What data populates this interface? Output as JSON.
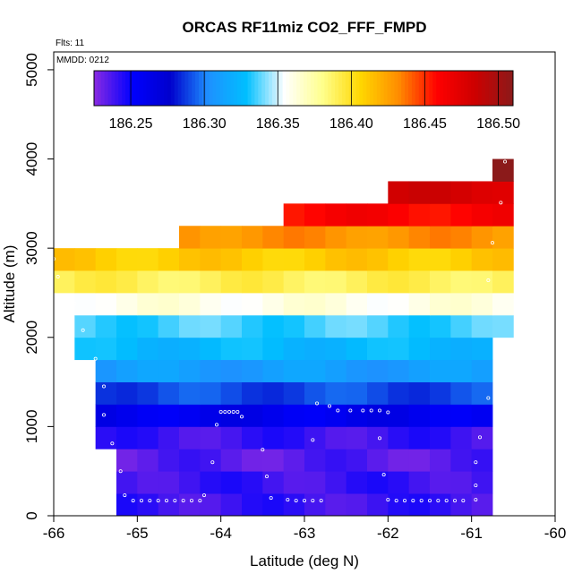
{
  "chart_data": {
    "type": "heatmap",
    "title": "ORCAS RF11miz CO2_FFF_FMPD",
    "xlabel": "Latitude (deg N)",
    "ylabel": "Altitude (m)",
    "xlim": [
      -66,
      -60
    ],
    "ylim": [
      0,
      5200
    ],
    "x_ticks": [
      -66,
      -65,
      -64,
      -63,
      -62,
      -61,
      -60
    ],
    "y_ticks": [
      0,
      1000,
      2000,
      3000,
      4000,
      5000
    ],
    "annotations": {
      "flights": "Flts: 11",
      "mmdd": "MMDD: 0212"
    },
    "colorbar": {
      "min": 186.225,
      "max": 186.51,
      "ticks": [
        186.25,
        186.3,
        186.35,
        186.4,
        186.45,
        186.5
      ],
      "tick_labels": [
        "186.25",
        "186.30",
        "186.35",
        "186.40",
        "186.45",
        "186.50"
      ],
      "colors": [
        "#8a2be2",
        "#0000ff",
        "#0000cd",
        "#1e90ff",
        "#00bfff",
        "#ffffff",
        "#ffff8c",
        "#ffd700",
        "#ff8c00",
        "#ff0000",
        "#cd0000",
        "#8b1a1a"
      ]
    },
    "altitude_bin_size_m": 250,
    "latitude_bin_size_deg": 0.25,
    "rows": [
      {
        "alt": 0,
        "lat_min": -65.25,
        "lat_max": -60.75,
        "value": 186.24
      },
      {
        "alt": 250,
        "lat_min": -65.25,
        "lat_max": -60.75,
        "value": 186.24
      },
      {
        "alt": 500,
        "lat_min": -65.25,
        "lat_max": -60.75,
        "value": 186.235
      },
      {
        "alt": 750,
        "lat_min": -65.5,
        "lat_max": -60.75,
        "value": 186.24
      },
      {
        "alt": 1000,
        "lat_min": -65.5,
        "lat_max": -60.75,
        "value": 186.26
      },
      {
        "alt": 1250,
        "lat_min": -65.5,
        "lat_max": -60.75,
        "value": 186.29
      },
      {
        "alt": 1500,
        "lat_min": -65.5,
        "lat_max": -60.75,
        "value": 186.31
      },
      {
        "alt": 1750,
        "lat_min": -65.75,
        "lat_max": -60.75,
        "value": 186.325
      },
      {
        "alt": 2000,
        "lat_min": -65.75,
        "lat_max": -60.5,
        "value": 186.335
      },
      {
        "alt": 2250,
        "lat_min": -65.75,
        "lat_max": -60.5,
        "value": 186.36
      },
      {
        "alt": 2500,
        "lat_min": -66,
        "lat_max": -60.5,
        "value": 186.39
      },
      {
        "alt": 2750,
        "lat_min": -66,
        "lat_max": -60.5,
        "value": 186.41
      },
      {
        "alt": 3000,
        "lat_min": -64.5,
        "lat_max": -60.5,
        "value": 186.43
      },
      {
        "alt": 3250,
        "lat_min": -63.25,
        "lat_max": -60.5,
        "value": 186.46
      },
      {
        "alt": 3500,
        "lat_min": -62,
        "lat_max": -60.5,
        "value": 186.48
      },
      {
        "alt": 3750,
        "lat_min": -60.75,
        "lat_max": -60.5,
        "value": 186.505
      }
    ],
    "sample_points": [
      [
        -65.05,
        170
      ],
      [
        -64.95,
        170
      ],
      [
        -64.85,
        170
      ],
      [
        -64.75,
        170
      ],
      [
        -64.65,
        170
      ],
      [
        -64.55,
        170
      ],
      [
        -64.45,
        170
      ],
      [
        -64.35,
        170
      ],
      [
        -64.25,
        170
      ],
      [
        -63.1,
        170
      ],
      [
        -63.0,
        170
      ],
      [
        -62.9,
        170
      ],
      [
        -62.8,
        170
      ],
      [
        -62.0,
        180
      ],
      [
        -61.9,
        170
      ],
      [
        -61.8,
        170
      ],
      [
        -61.7,
        170
      ],
      [
        -61.6,
        170
      ],
      [
        -61.5,
        170
      ],
      [
        -61.4,
        170
      ],
      [
        -61.3,
        170
      ],
      [
        -61.2,
        170
      ],
      [
        -61.1,
        170
      ],
      [
        -60.95,
        180
      ],
      [
        -65.15,
        230
      ],
      [
        -64.2,
        230
      ],
      [
        -63.4,
        200
      ],
      [
        -63.2,
        180
      ],
      [
        -60.95,
        340
      ],
      [
        -63.45,
        440
      ],
      [
        -62.05,
        460
      ],
      [
        -65.2,
        500
      ],
      [
        -60.95,
        600
      ],
      [
        -64.1,
        600
      ],
      [
        -63.5,
        740
      ],
      [
        -65.3,
        810
      ],
      [
        -62.9,
        850
      ],
      [
        -62.1,
        870
      ],
      [
        -60.9,
        880
      ],
      [
        -64.05,
        1020
      ],
      [
        -65.4,
        1130
      ],
      [
        -63.75,
        1110
      ],
      [
        -63.85,
        1165
      ],
      [
        -63.95,
        1165
      ],
      [
        -64.0,
        1165
      ],
      [
        -63.9,
        1165
      ],
      [
        -63.8,
        1165
      ],
      [
        -62.7,
        1230
      ],
      [
        -62.85,
        1260
      ],
      [
        -62.6,
        1180
      ],
      [
        -62.45,
        1180
      ],
      [
        -62.3,
        1180
      ],
      [
        -62.2,
        1180
      ],
      [
        -62.1,
        1180
      ],
      [
        -62.0,
        1160
      ],
      [
        -65.4,
        1450
      ],
      [
        -65.5,
        1760
      ],
      [
        -65.65,
        2080
      ],
      [
        -65.75,
        2380
      ],
      [
        -65.95,
        2680
      ],
      [
        -66.0,
        2880
      ],
      [
        -60.8,
        1320
      ],
      [
        -60.8,
        2640
      ],
      [
        -60.75,
        3060
      ],
      [
        -60.65,
        3510
      ],
      [
        -60.6,
        3970
      ]
    ]
  }
}
